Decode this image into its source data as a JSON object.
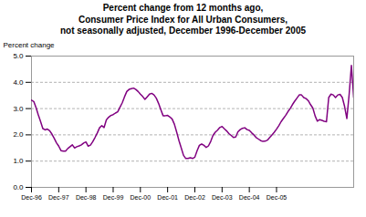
{
  "chart_data": {
    "type": "line",
    "title": "Percent change from 12 months ago,\nConsumer Price Index for All Urban Consumers,\nnot seasonally adjusted, December 1996-December 2005",
    "ylabel": "Percent change",
    "color": "#800080",
    "ylim": [
      0,
      5
    ],
    "yticks": [
      0,
      1,
      2,
      3,
      4,
      5
    ],
    "grid": true,
    "categories": [
      "Dec-96",
      null,
      null,
      null,
      null,
      null,
      null,
      null,
      null,
      null,
      null,
      null,
      "Dec-97",
      null,
      null,
      null,
      null,
      null,
      null,
      null,
      null,
      null,
      null,
      null,
      "Dec-98",
      null,
      null,
      null,
      null,
      null,
      null,
      null,
      null,
      null,
      null,
      null,
      "Dec-99",
      null,
      null,
      null,
      null,
      null,
      null,
      null,
      null,
      null,
      null,
      null,
      "Dec-00",
      null,
      null,
      null,
      null,
      null,
      null,
      null,
      null,
      null,
      null,
      null,
      "Dec-01",
      null,
      null,
      null,
      null,
      null,
      null,
      null,
      null,
      null,
      null,
      null,
      "Dec-02",
      null,
      null,
      null,
      null,
      null,
      null,
      null,
      null,
      null,
      null,
      null,
      "Dec-03",
      null,
      null,
      null,
      null,
      null,
      null,
      null,
      null,
      null,
      null,
      null,
      "Dec-04",
      null,
      null,
      null,
      null,
      null,
      null,
      null,
      null,
      null,
      null,
      null,
      "Dec-05",
      null,
      null,
      null,
      null,
      null,
      null,
      null,
      null,
      null,
      null,
      null,
      null,
      null,
      null,
      null,
      null,
      null,
      null,
      null,
      null,
      null,
      null,
      null,
      null,
      null,
      null,
      null,
      null,
      null,
      null,
      null,
      null,
      null,
      null
    ],
    "values": [
      3.32,
      3.27,
      3.04,
      2.76,
      2.51,
      2.24,
      2.19,
      2.22,
      2.16,
      2.03,
      1.87,
      1.7,
      1.57,
      1.4,
      1.38,
      1.38,
      1.48,
      1.55,
      1.62,
      1.5,
      1.55,
      1.58,
      1.62,
      1.69,
      1.73,
      1.57,
      1.61,
      1.74,
      1.9,
      2.07,
      2.27,
      2.35,
      2.28,
      2.57,
      2.67,
      2.74,
      2.77,
      2.83,
      2.88,
      3.05,
      3.22,
      3.45,
      3.65,
      3.73,
      3.76,
      3.78,
      3.73,
      3.65,
      3.55,
      3.46,
      3.35,
      3.45,
      3.55,
      3.58,
      3.52,
      3.4,
      3.2,
      2.96,
      2.73,
      2.73,
      2.74,
      2.68,
      2.6,
      2.4,
      2.1,
      1.78,
      1.5,
      1.22,
      1.1,
      1.1,
      1.13,
      1.1,
      1.15,
      1.4,
      1.6,
      1.65,
      1.6,
      1.52,
      1.58,
      1.75,
      1.98,
      2.1,
      2.18,
      2.28,
      2.32,
      2.23,
      2.15,
      2.05,
      1.98,
      1.9,
      1.92,
      2.12,
      2.2,
      2.25,
      2.27,
      2.2,
      2.17,
      2.08,
      2.0,
      1.9,
      1.84,
      1.78,
      1.75,
      1.76,
      1.8,
      1.9,
      2.0,
      2.1,
      2.22,
      2.35,
      2.5,
      2.62,
      2.74,
      2.88,
      3.0,
      3.15,
      3.28,
      3.4,
      3.52,
      3.52,
      3.42,
      3.38,
      3.3,
      3.15,
      3.02,
      2.72,
      2.52,
      2.58,
      2.55,
      2.52,
      2.5,
      3.42,
      3.55,
      3.52,
      3.42,
      3.52,
      3.54,
      3.42,
      3.08,
      2.62,
      3.54,
      4.64,
      3.42
    ]
  }
}
